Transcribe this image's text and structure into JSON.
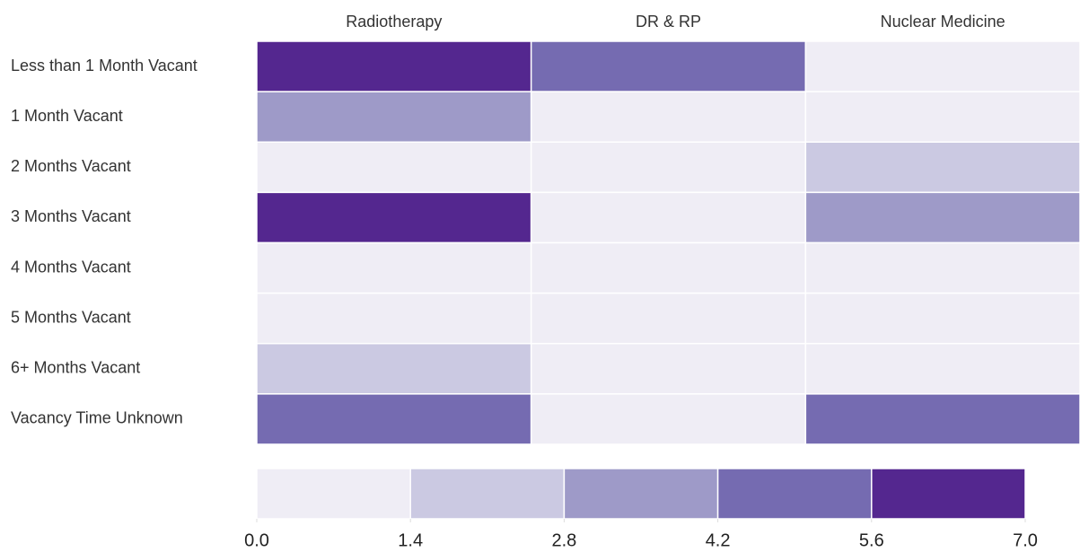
{
  "chart_data": {
    "type": "heatmap",
    "x": [
      "Radiotherapy",
      "DR & RP",
      "Nuclear Medicine"
    ],
    "y": [
      "Less than 1 Month Vacant",
      "1 Month Vacant",
      "2 Months Vacant",
      "3 Months Vacant",
      "4 Months Vacant",
      "5 Months Vacant",
      "6+ Months Vacant",
      "Vacancy Time Unknown"
    ],
    "z": [
      [
        7,
        5,
        0
      ],
      [
        3,
        0,
        0
      ],
      [
        0,
        0,
        2
      ],
      [
        7,
        0,
        3
      ],
      [
        0,
        0,
        0
      ],
      [
        0,
        0,
        0
      ],
      [
        2,
        0,
        0
      ],
      [
        5,
        0,
        5
      ]
    ],
    "colorscale": [
      "#efedf5",
      "#cbc9e2",
      "#9e9ac8",
      "#756bb1",
      "#54278f"
    ],
    "zlim": [
      0,
      7
    ],
    "zticks": [
      {
        "value": 0,
        "label": "0.0"
      },
      1.4,
      2.8,
      4.2,
      5.6,
      {
        "value": 7,
        "label": "7.0"
      }
    ]
  }
}
